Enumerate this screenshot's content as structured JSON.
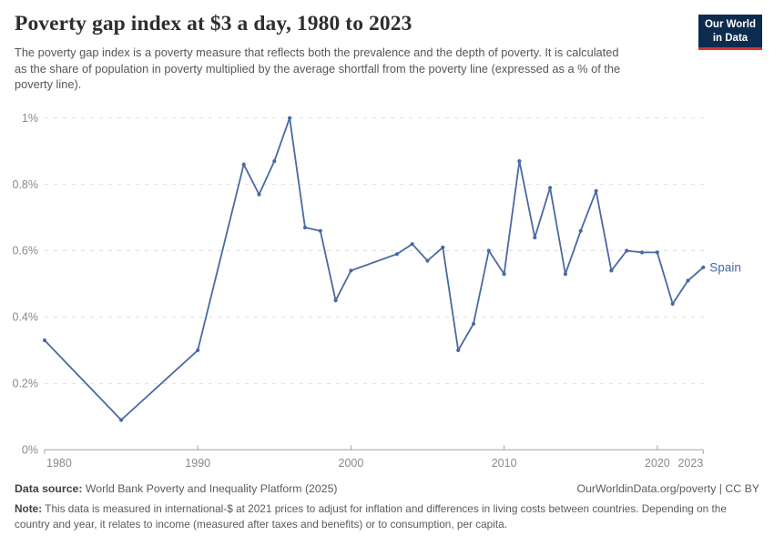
{
  "header": {
    "title": "Poverty gap index at $3 a day, 1980 to 2023",
    "subtitle": "The poverty gap index is a poverty measure that reflects both the prevalence and the depth of poverty. It is calculated as the share of population in poverty multiplied by the average shortfall from the poverty line (expressed as a % of the poverty line).",
    "logo": {
      "line1": "Our World",
      "line2": "in Data",
      "bg_color": "#0d2b4e",
      "accent_color": "#d8352c"
    }
  },
  "chart_data": {
    "type": "line",
    "title": "Poverty gap index at $3 a day, 1980 to 2023",
    "unit": "%",
    "xlim": [
      1980,
      2023
    ],
    "ylim": [
      0,
      1
    ],
    "grid": "horizontal-dashed",
    "legend_position": "end-of-line-label",
    "x_ticks": [
      {
        "value": 1980,
        "label": "1980"
      },
      {
        "value": 1990,
        "label": "1990"
      },
      {
        "value": 2000,
        "label": "2000"
      },
      {
        "value": 2010,
        "label": "2010"
      },
      {
        "value": 2020,
        "label": "2020"
      },
      {
        "value": 2023,
        "label": "2023"
      }
    ],
    "y_ticks": [
      {
        "value": 0,
        "label": "0%"
      },
      {
        "value": 0.2,
        "label": "0.2%"
      },
      {
        "value": 0.4,
        "label": "0.4%"
      },
      {
        "value": 0.6,
        "label": "0.6%"
      },
      {
        "value": 0.8,
        "label": "0.8%"
      },
      {
        "value": 1,
        "label": "1%"
      }
    ],
    "series": [
      {
        "name": "Spain",
        "color": "#4a69a2",
        "points": [
          [
            1980,
            0.33
          ],
          [
            1985,
            0.09
          ],
          [
            1990,
            0.3
          ],
          [
            1993,
            0.86
          ],
          [
            1994,
            0.77
          ],
          [
            1995,
            0.87
          ],
          [
            1996,
            1.0
          ],
          [
            1997,
            0.67
          ],
          [
            1998,
            0.66
          ],
          [
            1999,
            0.45
          ],
          [
            2000,
            0.54
          ],
          [
            2003,
            0.59
          ],
          [
            2004,
            0.62
          ],
          [
            2005,
            0.57
          ],
          [
            2006,
            0.61
          ],
          [
            2007,
            0.3
          ],
          [
            2008,
            0.38
          ],
          [
            2009,
            0.6
          ],
          [
            2010,
            0.53
          ],
          [
            2011,
            0.87
          ],
          [
            2012,
            0.64
          ],
          [
            2013,
            0.79
          ],
          [
            2014,
            0.53
          ],
          [
            2015,
            0.66
          ],
          [
            2016,
            0.78
          ],
          [
            2017,
            0.54
          ],
          [
            2018,
            0.6
          ],
          [
            2019,
            0.595
          ],
          [
            2020,
            0.595
          ],
          [
            2021,
            0.44
          ],
          [
            2022,
            0.51
          ],
          [
            2023,
            0.55
          ]
        ]
      }
    ]
  },
  "footer": {
    "source_label": "Data source:",
    "source_text": "World Bank Poverty and Inequality Platform (2025)",
    "credit": "OurWorldinData.org/poverty | CC BY",
    "note_label": "Note:",
    "note_text": "This data is measured in international-$ at 2021 prices to adjust for inflation and differences in living costs between countries. Depending on the country and year, it relates to income (measured after taxes and benefits) or to consumption, per capita."
  }
}
